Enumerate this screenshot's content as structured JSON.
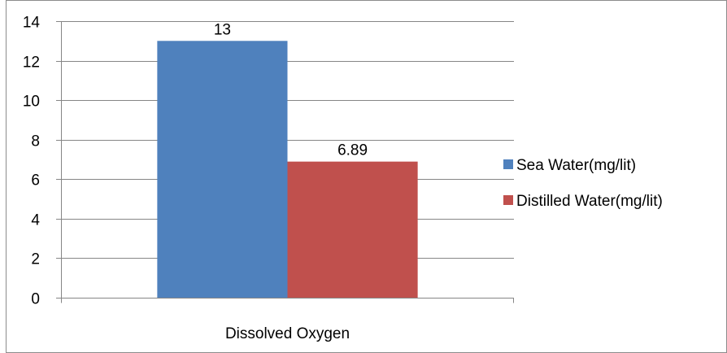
{
  "chart_data": {
    "type": "bar",
    "categories": [
      "Dissolved Oxygen"
    ],
    "series": [
      {
        "name": "Sea Water(mg/lit)",
        "values": [
          13
        ],
        "color": "#4F81BD",
        "data_label": "13"
      },
      {
        "name": "Distilled Water(mg/lit)",
        "values": [
          6.89
        ],
        "color": "#C0504D",
        "data_label": "6.89"
      }
    ],
    "title": "",
    "xlabel": "",
    "ylabel": "",
    "ylim": [
      0,
      14
    ],
    "yticks": [
      0,
      2,
      4,
      6,
      8,
      10,
      12,
      14
    ],
    "ytick_labels": [
      "0",
      "2",
      "4",
      "6",
      "8",
      "10",
      "12",
      "14"
    ],
    "grid": "horizontal",
    "legend_position": "right"
  }
}
